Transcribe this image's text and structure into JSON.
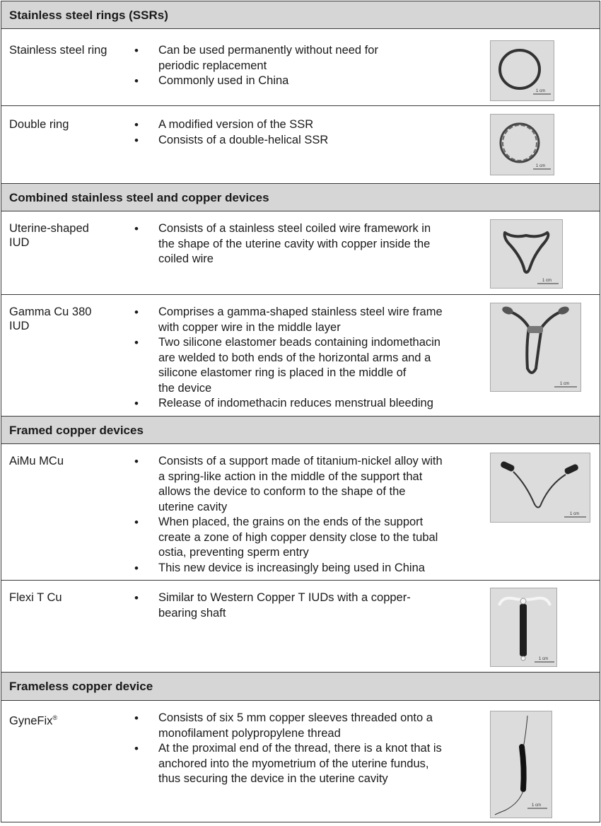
{
  "sections": [
    {
      "title": "Stainless steel rings (SSRs)",
      "rows": [
        {
          "name": "Stainless steel ring",
          "bullets": [
            "Can be used permanently without need for\nperiodic replacement",
            "Commonly used in China"
          ],
          "scale": "1 cm"
        },
        {
          "name": "Double ring",
          "bullets": [
            "A modified version of the SSR",
            "Consists of a double-helical SSR"
          ],
          "scale": "1 cm"
        }
      ]
    },
    {
      "title": "Combined stainless steel and copper devices",
      "rows": [
        {
          "name": "Uterine-shaped\nIUD",
          "bullets": [
            "Consists of a stainless steel coiled wire framework in\nthe shape of the uterine cavity with copper inside the\ncoiled wire"
          ],
          "scale": "1 cm"
        },
        {
          "name": "Gamma Cu 380\nIUD",
          "bullets": [
            "Comprises a gamma-shaped stainless steel wire frame\nwith copper wire in the middle layer",
            "Two silicone elastomer beads containing indomethacin\nare welded to both ends of the horizontal arms and a\nsilicone elastomer ring is placed in the middle of\nthe device",
            "Release of indomethacin reduces menstrual bleeding"
          ],
          "scale": "1 cm"
        }
      ]
    },
    {
      "title": "Framed copper devices",
      "rows": [
        {
          "name": "AiMu MCu",
          "bullets": [
            "Consists of a support made of titanium-nickel alloy with\na spring-like action in the middle of the support that\nallows the device to conform to the shape of the\nuterine cavity",
            "When placed, the grains on the ends of the support\ncreate a zone of high copper density close to the tubal\nostia, preventing sperm entry",
            "This new device is increasingly being used in China"
          ],
          "scale": "1 cm"
        },
        {
          "name": "Flexi T Cu",
          "bullets": [
            "Similar to Western Copper T IUDs with a copper-\nbearing shaft"
          ],
          "scale": "1 cm"
        }
      ]
    },
    {
      "title": "Frameless copper device",
      "rows": [
        {
          "name": "GyneFix",
          "name_sup": "®",
          "bullets": [
            "Consists of six 5 mm copper sleeves threaded onto a\nmonofilament polypropylene thread",
            "At the proximal end of the thread, there is a knot that is\nanchored into the myometrium of the uterine fundus,\nthus securing the device in the uterine cavity"
          ],
          "scale": "1 cm"
        }
      ]
    }
  ]
}
